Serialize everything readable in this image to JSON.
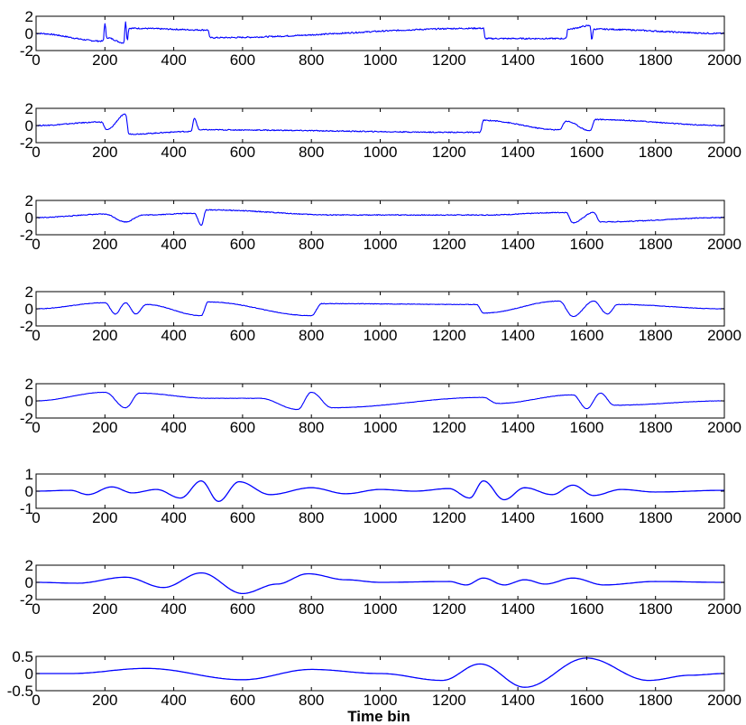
{
  "chart_data": {
    "type": "line",
    "xlabel": "Time bin",
    "x_range": [
      0,
      2000
    ],
    "x_ticks": [
      0,
      200,
      400,
      600,
      800,
      1000,
      1200,
      1400,
      1600,
      1800,
      2000
    ],
    "line_color": "#0000ff",
    "grid": false,
    "subplots": [
      {
        "ylim": [
          -2,
          2
        ],
        "yticks": [
          -2,
          0,
          2
        ],
        "ytick_labels": [
          "-2",
          "0",
          "2"
        ],
        "style": "spiky",
        "noise": 0.08,
        "points": [
          [
            0,
            0
          ],
          [
            195,
            -0.9
          ],
          [
            200,
            1.2
          ],
          [
            205,
            -0.5
          ],
          [
            255,
            -1.1
          ],
          [
            260,
            1.4
          ],
          [
            265,
            -0.8
          ],
          [
            270,
            0.6
          ],
          [
            500,
            0.4
          ],
          [
            505,
            -0.5
          ],
          [
            1300,
            0.6
          ],
          [
            1305,
            -0.6
          ],
          [
            1540,
            -0.6
          ],
          [
            1545,
            0.5
          ],
          [
            1610,
            0.9
          ],
          [
            1615,
            -0.8
          ],
          [
            1620,
            0.5
          ],
          [
            2000,
            0
          ]
        ]
      },
      {
        "ylim": [
          -2,
          2
        ],
        "yticks": [
          -2,
          0,
          2
        ],
        "ytick_labels": [
          "-2",
          "0",
          "2"
        ],
        "style": "wavelet",
        "noise": 0.06,
        "points": [
          [
            0,
            0
          ],
          [
            190,
            0.4
          ],
          [
            205,
            -0.5
          ],
          [
            260,
            1.3
          ],
          [
            270,
            -1.0
          ],
          [
            450,
            -0.7
          ],
          [
            460,
            0.8
          ],
          [
            475,
            -0.5
          ],
          [
            1290,
            -0.8
          ],
          [
            1300,
            0.6
          ],
          [
            1520,
            -0.5
          ],
          [
            1540,
            0.5
          ],
          [
            1610,
            -0.6
          ],
          [
            1625,
            0.7
          ],
          [
            2000,
            0
          ]
        ]
      },
      {
        "ylim": [
          -2,
          2
        ],
        "yticks": [
          -2,
          0,
          2
        ],
        "ytick_labels": [
          "-2",
          "0",
          "2"
        ],
        "style": "wavelet",
        "noise": 0.05,
        "points": [
          [
            0,
            0
          ],
          [
            200,
            0.4
          ],
          [
            260,
            -0.5
          ],
          [
            310,
            0.3
          ],
          [
            460,
            0.5
          ],
          [
            480,
            -0.9
          ],
          [
            495,
            0.9
          ],
          [
            880,
            0.3
          ],
          [
            1300,
            0.3
          ],
          [
            1540,
            0.6
          ],
          [
            1560,
            -0.6
          ],
          [
            1620,
            0.6
          ],
          [
            1640,
            -0.5
          ],
          [
            2000,
            0
          ]
        ]
      },
      {
        "ylim": [
          -2,
          2
        ],
        "yticks": [
          -2,
          0,
          2
        ],
        "ytick_labels": [
          "-2",
          "0",
          "2"
        ],
        "style": "wavelet",
        "noise": 0.03,
        "points": [
          [
            0,
            0
          ],
          [
            200,
            0.7
          ],
          [
            230,
            -0.6
          ],
          [
            260,
            0.7
          ],
          [
            290,
            -0.6
          ],
          [
            320,
            0.5
          ],
          [
            480,
            -0.8
          ],
          [
            500,
            0.8
          ],
          [
            800,
            -0.8
          ],
          [
            830,
            0.6
          ],
          [
            1280,
            0.5
          ],
          [
            1300,
            -0.5
          ],
          [
            1520,
            0.9
          ],
          [
            1560,
            -0.9
          ],
          [
            1620,
            0.9
          ],
          [
            1660,
            -0.6
          ],
          [
            1690,
            0.5
          ],
          [
            2000,
            0
          ]
        ]
      },
      {
        "ylim": [
          -2,
          2
        ],
        "yticks": [
          -2,
          0,
          2
        ],
        "ytick_labels": [
          "-2",
          "0",
          "2"
        ],
        "style": "wavelet",
        "noise": 0.02,
        "points": [
          [
            0,
            0
          ],
          [
            200,
            1.0
          ],
          [
            260,
            -0.8
          ],
          [
            300,
            0.9
          ],
          [
            500,
            0.3
          ],
          [
            650,
            0.3
          ],
          [
            760,
            -1.0
          ],
          [
            800,
            1.0
          ],
          [
            860,
            -0.8
          ],
          [
            1300,
            0.4
          ],
          [
            1340,
            -0.3
          ],
          [
            1560,
            0.7
          ],
          [
            1600,
            -0.9
          ],
          [
            1640,
            0.9
          ],
          [
            1680,
            -0.5
          ],
          [
            2000,
            0
          ]
        ]
      },
      {
        "ylim": [
          -1,
          1
        ],
        "yticks": [
          -1,
          0,
          1
        ],
        "ytick_labels": [
          "-1",
          "0",
          "1"
        ],
        "style": "smooth",
        "points": [
          [
            0,
            0
          ],
          [
            100,
            0.05
          ],
          [
            150,
            -0.2
          ],
          [
            220,
            0.25
          ],
          [
            280,
            -0.1
          ],
          [
            350,
            0.1
          ],
          [
            420,
            -0.4
          ],
          [
            480,
            0.6
          ],
          [
            530,
            -0.6
          ],
          [
            590,
            0.55
          ],
          [
            680,
            -0.2
          ],
          [
            800,
            0.2
          ],
          [
            900,
            -0.15
          ],
          [
            1000,
            0.1
          ],
          [
            1100,
            0.0
          ],
          [
            1200,
            0.15
          ],
          [
            1260,
            -0.4
          ],
          [
            1300,
            0.6
          ],
          [
            1360,
            -0.5
          ],
          [
            1420,
            0.2
          ],
          [
            1500,
            -0.2
          ],
          [
            1560,
            0.35
          ],
          [
            1620,
            -0.25
          ],
          [
            1700,
            0.1
          ],
          [
            1800,
            -0.05
          ],
          [
            2000,
            0.05
          ]
        ]
      },
      {
        "ylim": [
          -2,
          2
        ],
        "yticks": [
          -2,
          0,
          2
        ],
        "ytick_labels": [
          "-2",
          "0",
          "2"
        ],
        "style": "smooth",
        "points": [
          [
            0,
            0
          ],
          [
            120,
            -0.1
          ],
          [
            260,
            0.6
          ],
          [
            370,
            -0.6
          ],
          [
            480,
            1.1
          ],
          [
            600,
            -1.3
          ],
          [
            700,
            -0.2
          ],
          [
            790,
            1.0
          ],
          [
            900,
            0.3
          ],
          [
            1000,
            0.0
          ],
          [
            1200,
            0.1
          ],
          [
            1250,
            -0.3
          ],
          [
            1300,
            0.5
          ],
          [
            1360,
            -0.3
          ],
          [
            1420,
            0.3
          ],
          [
            1480,
            -0.2
          ],
          [
            1560,
            0.5
          ],
          [
            1650,
            -0.3
          ],
          [
            1800,
            0.1
          ],
          [
            2000,
            0.0
          ]
        ]
      },
      {
        "ylim": [
          -0.5,
          0.5
        ],
        "yticks": [
          -0.5,
          0,
          0.5
        ],
        "ytick_labels": [
          "-0.5",
          "0",
          "0.5"
        ],
        "style": "smooth",
        "points": [
          [
            0,
            0
          ],
          [
            100,
            0.0
          ],
          [
            320,
            0.15
          ],
          [
            600,
            -0.18
          ],
          [
            800,
            0.12
          ],
          [
            1000,
            0.0
          ],
          [
            1180,
            -0.2
          ],
          [
            1290,
            0.28
          ],
          [
            1420,
            -0.4
          ],
          [
            1600,
            0.45
          ],
          [
            1780,
            -0.2
          ],
          [
            1900,
            -0.05
          ],
          [
            2000,
            0.0
          ]
        ]
      }
    ]
  }
}
